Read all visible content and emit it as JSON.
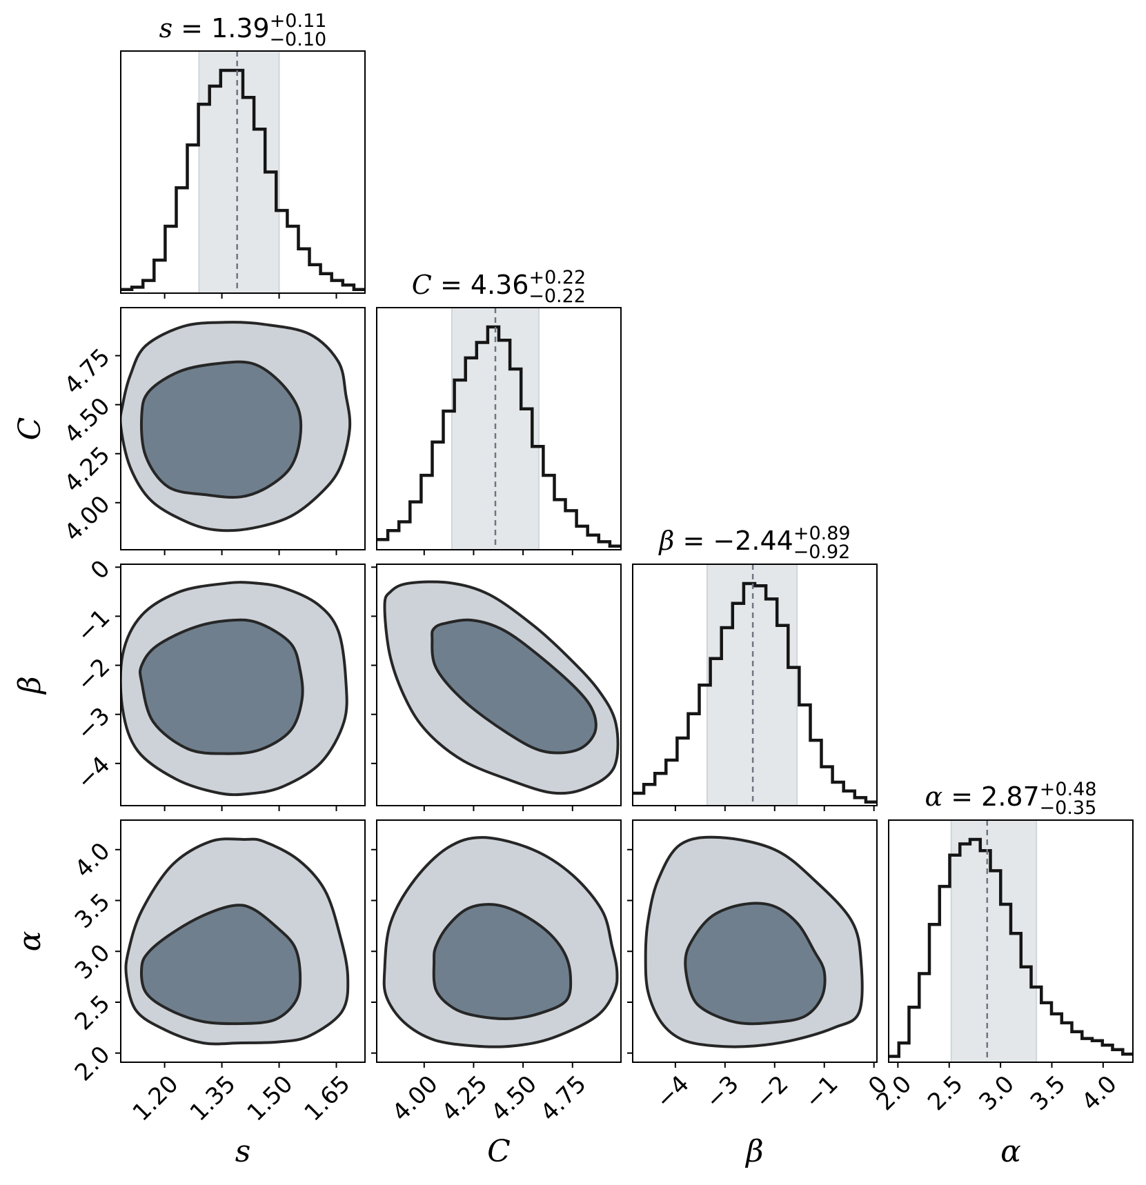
{
  "chart_data": {
    "type": "corner",
    "parameters": [
      {
        "symbol": "s",
        "axis_label": "s",
        "median": "1.39",
        "err_plus": "+0.11",
        "err_minus": "−0.10",
        "median_value": 1.39,
        "lo_value": 1.29,
        "hi_value": 1.5,
        "range": [
          1.085,
          1.725
        ],
        "ticks": [
          "1.20",
          "1.35",
          "1.50",
          "1.65"
        ],
        "tick_values": [
          1.2,
          1.35,
          1.5,
          1.65
        ]
      },
      {
        "symbol": "C",
        "axis_label": "C",
        "median": "4.36",
        "err_plus": "+0.22",
        "err_minus": "−0.22",
        "median_value": 4.36,
        "lo_value": 4.14,
        "hi_value": 4.58,
        "range": [
          3.76,
          4.995
        ],
        "ticks": [
          "4.00",
          "4.25",
          "4.50",
          "4.75"
        ],
        "tick_values": [
          4.0,
          4.25,
          4.5,
          4.75
        ]
      },
      {
        "symbol": "β",
        "axis_label": "β",
        "median": "−2.44",
        "err_plus": "+0.89",
        "err_minus": "−0.92",
        "median_value": -2.44,
        "lo_value": -3.36,
        "hi_value": -1.55,
        "range": [
          -4.86,
          0.06
        ],
        "ticks": [
          "−4",
          "−3",
          "−2",
          "−1",
          "0"
        ],
        "tick_values": [
          -4,
          -3,
          -2,
          -1,
          0
        ]
      },
      {
        "symbol": "α",
        "axis_label": "α",
        "median": "2.87",
        "err_plus": "+0.48",
        "err_minus": "−0.35",
        "median_value": 2.87,
        "lo_value": 2.52,
        "hi_value": 3.35,
        "range": [
          1.91,
          4.29
        ],
        "ticks": [
          "2.0",
          "2.5",
          "3.0",
          "3.5",
          "4.0"
        ],
        "tick_values": [
          2.0,
          2.5,
          3.0,
          3.5,
          4.0
        ]
      }
    ],
    "histograms": [
      {
        "parameter": "s",
        "bin_range": [
          1.085,
          1.725
        ],
        "counts": [
          1,
          2,
          5,
          14,
          29,
          46,
          65,
          83,
          91,
          98,
          98,
          86,
          72,
          53,
          36,
          29,
          19,
          12,
          8,
          5,
          3,
          1
        ]
      },
      {
        "parameter": "C",
        "bin_range": [
          3.76,
          4.995
        ],
        "counts": [
          4,
          8,
          12,
          21,
          33,
          48,
          62,
          76,
          86,
          93,
          100,
          94,
          81,
          63,
          46,
          33,
          22,
          17,
          10,
          6,
          3,
          1
        ]
      },
      {
        "parameter": "β",
        "bin_range": [
          -4.86,
          0.06
        ],
        "counts": [
          5,
          9,
          14,
          20,
          30,
          41,
          54,
          66,
          80,
          91,
          100,
          99,
          93,
          81,
          62,
          45,
          29,
          17,
          10,
          6,
          3,
          1
        ]
      },
      {
        "parameter": "α",
        "bin_range": [
          1.91,
          4.29
        ],
        "counts": [
          2,
          8,
          24,
          39,
          61,
          78,
          92,
          97,
          99,
          94,
          85,
          70,
          57,
          42,
          33,
          26,
          21,
          17,
          13,
          10,
          9,
          7,
          5,
          3
        ]
      }
    ],
    "contours": [
      {
        "x": "s",
        "y": "C",
        "outer": [
          [
            1.085,
            4.39
          ],
          [
            1.11,
            4.18
          ],
          [
            1.165,
            4.01
          ],
          [
            1.26,
            3.9
          ],
          [
            1.34,
            3.86
          ],
          [
            1.43,
            3.87
          ],
          [
            1.53,
            3.93
          ],
          [
            1.61,
            4.05
          ],
          [
            1.66,
            4.18
          ],
          [
            1.685,
            4.38
          ],
          [
            1.675,
            4.55
          ],
          [
            1.655,
            4.72
          ],
          [
            1.58,
            4.86
          ],
          [
            1.46,
            4.91
          ],
          [
            1.36,
            4.92
          ],
          [
            1.25,
            4.9
          ],
          [
            1.15,
            4.8
          ],
          [
            1.11,
            4.65
          ],
          [
            1.09,
            4.5
          ]
        ],
        "inner": [
          [
            1.14,
            4.45
          ],
          [
            1.15,
            4.24
          ],
          [
            1.21,
            4.08
          ],
          [
            1.31,
            4.04
          ],
          [
            1.4,
            4.03
          ],
          [
            1.47,
            4.08
          ],
          [
            1.53,
            4.18
          ],
          [
            1.555,
            4.33
          ],
          [
            1.55,
            4.48
          ],
          [
            1.5,
            4.62
          ],
          [
            1.43,
            4.71
          ],
          [
            1.34,
            4.71
          ],
          [
            1.24,
            4.67
          ],
          [
            1.16,
            4.57
          ]
        ]
      },
      {
        "x": "s",
        "y": "β",
        "outer": [
          [
            1.09,
            -2.9
          ],
          [
            1.13,
            -3.75
          ],
          [
            1.23,
            -4.32
          ],
          [
            1.34,
            -4.6
          ],
          [
            1.42,
            -4.62
          ],
          [
            1.51,
            -4.47
          ],
          [
            1.61,
            -3.98
          ],
          [
            1.67,
            -3.15
          ],
          [
            1.675,
            -2.32
          ],
          [
            1.655,
            -1.3
          ],
          [
            1.6,
            -0.75
          ],
          [
            1.51,
            -0.42
          ],
          [
            1.43,
            -0.32
          ],
          [
            1.36,
            -0.33
          ],
          [
            1.24,
            -0.5
          ],
          [
            1.14,
            -0.98
          ],
          [
            1.09,
            -1.78
          ]
        ],
        "inner": [
          [
            1.14,
            -2.35
          ],
          [
            1.17,
            -3.15
          ],
          [
            1.26,
            -3.7
          ],
          [
            1.36,
            -3.8
          ],
          [
            1.45,
            -3.72
          ],
          [
            1.53,
            -3.33
          ],
          [
            1.56,
            -2.7
          ],
          [
            1.555,
            -2.1
          ],
          [
            1.53,
            -1.55
          ],
          [
            1.45,
            -1.15
          ],
          [
            1.38,
            -1.08
          ],
          [
            1.28,
            -1.22
          ],
          [
            1.18,
            -1.6
          ],
          [
            1.14,
            -2.0
          ]
        ]
      },
      {
        "x": "C",
        "y": "β",
        "outer": [
          [
            3.8,
            -0.8
          ],
          [
            3.83,
            -1.85
          ],
          [
            3.92,
            -2.8
          ],
          [
            4.03,
            -3.42
          ],
          [
            4.2,
            -3.95
          ],
          [
            4.42,
            -4.32
          ],
          [
            4.65,
            -4.6
          ],
          [
            4.82,
            -4.5
          ],
          [
            4.96,
            -4.08
          ],
          [
            4.97,
            -3.2
          ],
          [
            4.88,
            -2.5
          ],
          [
            4.72,
            -1.8
          ],
          [
            4.55,
            -1.18
          ],
          [
            4.33,
            -0.56
          ],
          [
            4.13,
            -0.32
          ],
          [
            3.92,
            -0.33
          ],
          [
            3.83,
            -0.5
          ]
        ],
        "inner": [
          [
            4.04,
            -1.44
          ],
          [
            4.06,
            -2.05
          ],
          [
            4.2,
            -2.72
          ],
          [
            4.42,
            -3.38
          ],
          [
            4.6,
            -3.75
          ],
          [
            4.77,
            -3.73
          ],
          [
            4.86,
            -3.4
          ],
          [
            4.855,
            -2.95
          ],
          [
            4.77,
            -2.48
          ],
          [
            4.58,
            -1.8
          ],
          [
            4.4,
            -1.28
          ],
          [
            4.24,
            -1.08
          ],
          [
            4.1,
            -1.15
          ],
          [
            4.05,
            -1.25
          ]
        ]
      },
      {
        "x": "s",
        "y": "α",
        "outer": [
          [
            1.1,
            2.75
          ],
          [
            1.125,
            2.42
          ],
          [
            1.2,
            2.23
          ],
          [
            1.3,
            2.1
          ],
          [
            1.4,
            2.1
          ],
          [
            1.5,
            2.11
          ],
          [
            1.58,
            2.17
          ],
          [
            1.665,
            2.41
          ],
          [
            1.68,
            2.75
          ],
          [
            1.66,
            3.15
          ],
          [
            1.62,
            3.6
          ],
          [
            1.55,
            3.9
          ],
          [
            1.46,
            4.08
          ],
          [
            1.41,
            4.1
          ],
          [
            1.32,
            4.08
          ],
          [
            1.22,
            3.85
          ],
          [
            1.14,
            3.4
          ],
          [
            1.105,
            3.0
          ]
        ],
        "inner": [
          [
            1.14,
            2.85
          ],
          [
            1.15,
            2.6
          ],
          [
            1.21,
            2.43
          ],
          [
            1.3,
            2.31
          ],
          [
            1.4,
            2.29
          ],
          [
            1.49,
            2.33
          ],
          [
            1.545,
            2.52
          ],
          [
            1.555,
            2.78
          ],
          [
            1.54,
            3.05
          ],
          [
            1.49,
            3.25
          ],
          [
            1.43,
            3.42
          ],
          [
            1.38,
            3.45
          ],
          [
            1.3,
            3.35
          ],
          [
            1.22,
            3.18
          ],
          [
            1.16,
            3.0
          ]
        ]
      },
      {
        "x": "C",
        "y": "α",
        "outer": [
          [
            3.8,
            2.82
          ],
          [
            3.81,
            2.55
          ],
          [
            3.9,
            2.3
          ],
          [
            4.05,
            2.13
          ],
          [
            4.25,
            2.07
          ],
          [
            4.45,
            2.07
          ],
          [
            4.65,
            2.15
          ],
          [
            4.87,
            2.36
          ],
          [
            4.96,
            2.6
          ],
          [
            4.975,
            2.8
          ],
          [
            4.95,
            3.05
          ],
          [
            4.9,
            3.4
          ],
          [
            4.75,
            3.75
          ],
          [
            4.55,
            4.0
          ],
          [
            4.3,
            4.12
          ],
          [
            4.12,
            4.02
          ],
          [
            3.95,
            3.7
          ],
          [
            3.83,
            3.28
          ]
        ],
        "inner": [
          [
            4.05,
            2.9
          ],
          [
            4.06,
            2.62
          ],
          [
            4.15,
            2.44
          ],
          [
            4.28,
            2.36
          ],
          [
            4.45,
            2.34
          ],
          [
            4.6,
            2.4
          ],
          [
            4.72,
            2.52
          ],
          [
            4.74,
            2.75
          ],
          [
            4.71,
            2.98
          ],
          [
            4.62,
            3.2
          ],
          [
            4.48,
            3.38
          ],
          [
            4.35,
            3.46
          ],
          [
            4.22,
            3.42
          ],
          [
            4.12,
            3.25
          ],
          [
            4.06,
            3.05
          ]
        ]
      },
      {
        "x": "β",
        "y": "α",
        "outer": [
          [
            -4.6,
            2.95
          ],
          [
            -4.55,
            2.6
          ],
          [
            -4.28,
            2.3
          ],
          [
            -3.85,
            2.13
          ],
          [
            -3.2,
            2.07
          ],
          [
            -2.4,
            2.07
          ],
          [
            -1.6,
            2.13
          ],
          [
            -0.8,
            2.25
          ],
          [
            -0.3,
            2.4
          ],
          [
            -0.26,
            2.9
          ],
          [
            -0.45,
            3.3
          ],
          [
            -1.2,
            3.7
          ],
          [
            -2.0,
            4.0
          ],
          [
            -3.1,
            4.12
          ],
          [
            -3.9,
            4.05
          ],
          [
            -4.35,
            3.7
          ],
          [
            -4.55,
            3.3
          ]
        ],
        "inner": [
          [
            -3.8,
            2.9
          ],
          [
            -3.68,
            2.58
          ],
          [
            -3.4,
            2.42
          ],
          [
            -2.75,
            2.3
          ],
          [
            -2.05,
            2.3
          ],
          [
            -1.4,
            2.36
          ],
          [
            -1.05,
            2.55
          ],
          [
            -1.0,
            2.8
          ],
          [
            -1.2,
            3.0
          ],
          [
            -1.55,
            3.28
          ],
          [
            -2.05,
            3.45
          ],
          [
            -2.65,
            3.46
          ],
          [
            -3.25,
            3.35
          ],
          [
            -3.65,
            3.12
          ]
        ]
      }
    ],
    "colors": {
      "inner_fill": "#6f7f8d",
      "outer_fill": "#cdd2d8",
      "outline": "#262626",
      "quantile_band": "#e3e7ea",
      "median_line": "#6e7582",
      "hist_line": "#151515"
    }
  }
}
